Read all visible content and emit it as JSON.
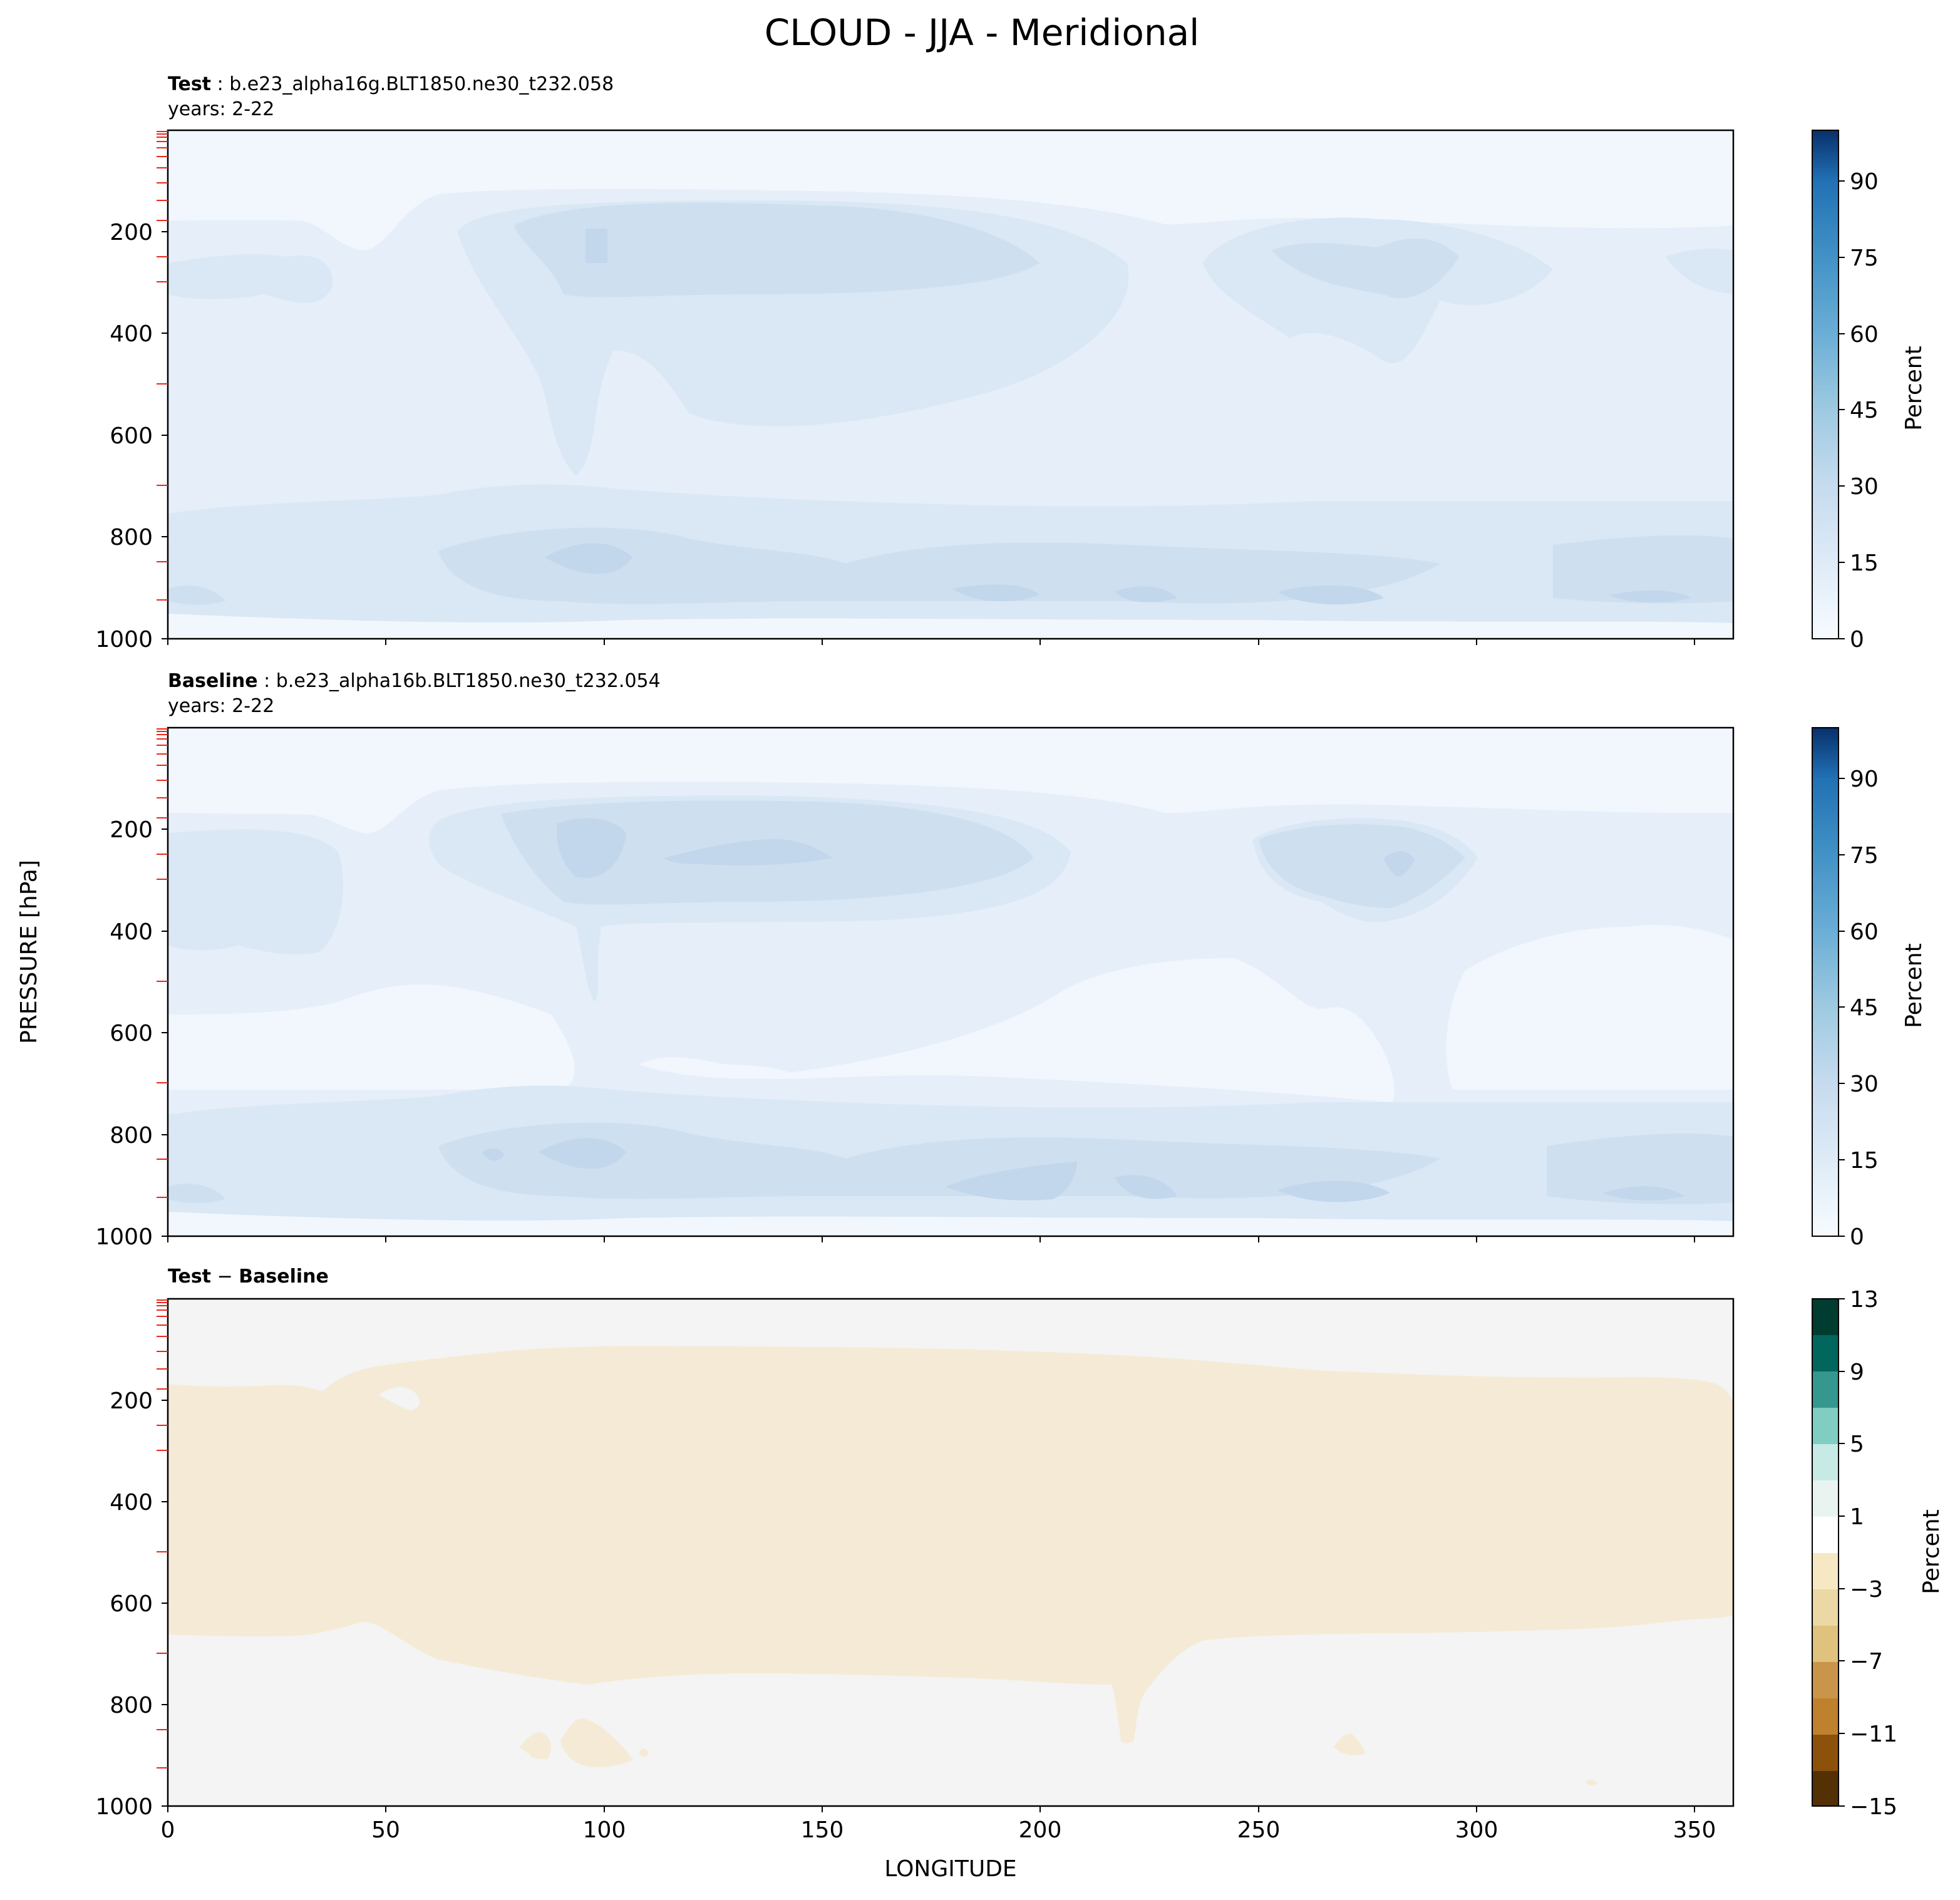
{
  "figure": {
    "title": "CLOUD - JJA - Meridional",
    "ylabel": "PRESSURE [hPa]",
    "xlabel": "LONGITUDE"
  },
  "chart_data": [
    {
      "type": "heatmap",
      "panel": "test",
      "title_bold": "Test",
      "title_rest": " : b.e23_alpha16g.BLT1850.ne30_t232.058",
      "subtitle": "years: 2-22",
      "xlim": [
        0,
        359
      ],
      "ylim": [
        1000,
        0
      ],
      "y_ticks": [
        200,
        400,
        600,
        800,
        1000
      ],
      "x_ticks": [
        0,
        50,
        100,
        150,
        200,
        250,
        300,
        350
      ],
      "x_tick_labels_shown": false,
      "colorbar": {
        "label": "Percent",
        "vmin": 0,
        "vmax": 100,
        "ticks": [
          0,
          15,
          30,
          45,
          60,
          75,
          90
        ],
        "colormap": "Blues"
      },
      "colors": [
        "#f2f7fd",
        "#e6eff9",
        "#dae8f5",
        "#cedff0",
        "#c2d7ec"
      ]
    },
    {
      "type": "heatmap",
      "panel": "baseline",
      "title_bold": "Baseline",
      "title_rest": " : b.e23_alpha16b.BLT1850.ne30_t232.054",
      "subtitle": "years: 2-22",
      "xlim": [
        0,
        359
      ],
      "ylim": [
        1000,
        0
      ],
      "y_ticks": [
        200,
        400,
        600,
        800,
        1000
      ],
      "x_ticks": [
        0,
        50,
        100,
        150,
        200,
        250,
        300,
        350
      ],
      "x_tick_labels_shown": false,
      "colorbar": {
        "label": "Percent",
        "vmin": 0,
        "vmax": 100,
        "ticks": [
          0,
          15,
          30,
          45,
          60,
          75,
          90
        ],
        "colormap": "Blues"
      },
      "colors": [
        "#f2f7fd",
        "#e6eff9",
        "#dae8f5",
        "#cedff0",
        "#c2d7ec"
      ]
    },
    {
      "type": "heatmap",
      "panel": "difference",
      "title_bold": "Test",
      "title_sep": " − ",
      "title_bold2": "Baseline",
      "xlim": [
        0,
        359
      ],
      "ylim": [
        1000,
        0
      ],
      "y_ticks": [
        200,
        400,
        600,
        800,
        1000
      ],
      "x_ticks": [
        0,
        50,
        100,
        150,
        200,
        250,
        300,
        350
      ],
      "x_tick_labels_shown": true,
      "colorbar": {
        "label": "Percent",
        "vmin": -15,
        "vmax": 13,
        "ticks": [
          -15,
          -11,
          -7,
          -3,
          1,
          5,
          9,
          13
        ],
        "tick_labels": [
          "−15",
          "−11",
          "−7",
          "−3",
          "1",
          "5",
          "9",
          "13"
        ],
        "colormap": "BrBG"
      },
      "colors": [
        "#f3f4f3",
        "#f5ead5"
      ]
    }
  ],
  "colors": {
    "pressure_level_marks": "#e8281c",
    "axes": "#000000"
  }
}
